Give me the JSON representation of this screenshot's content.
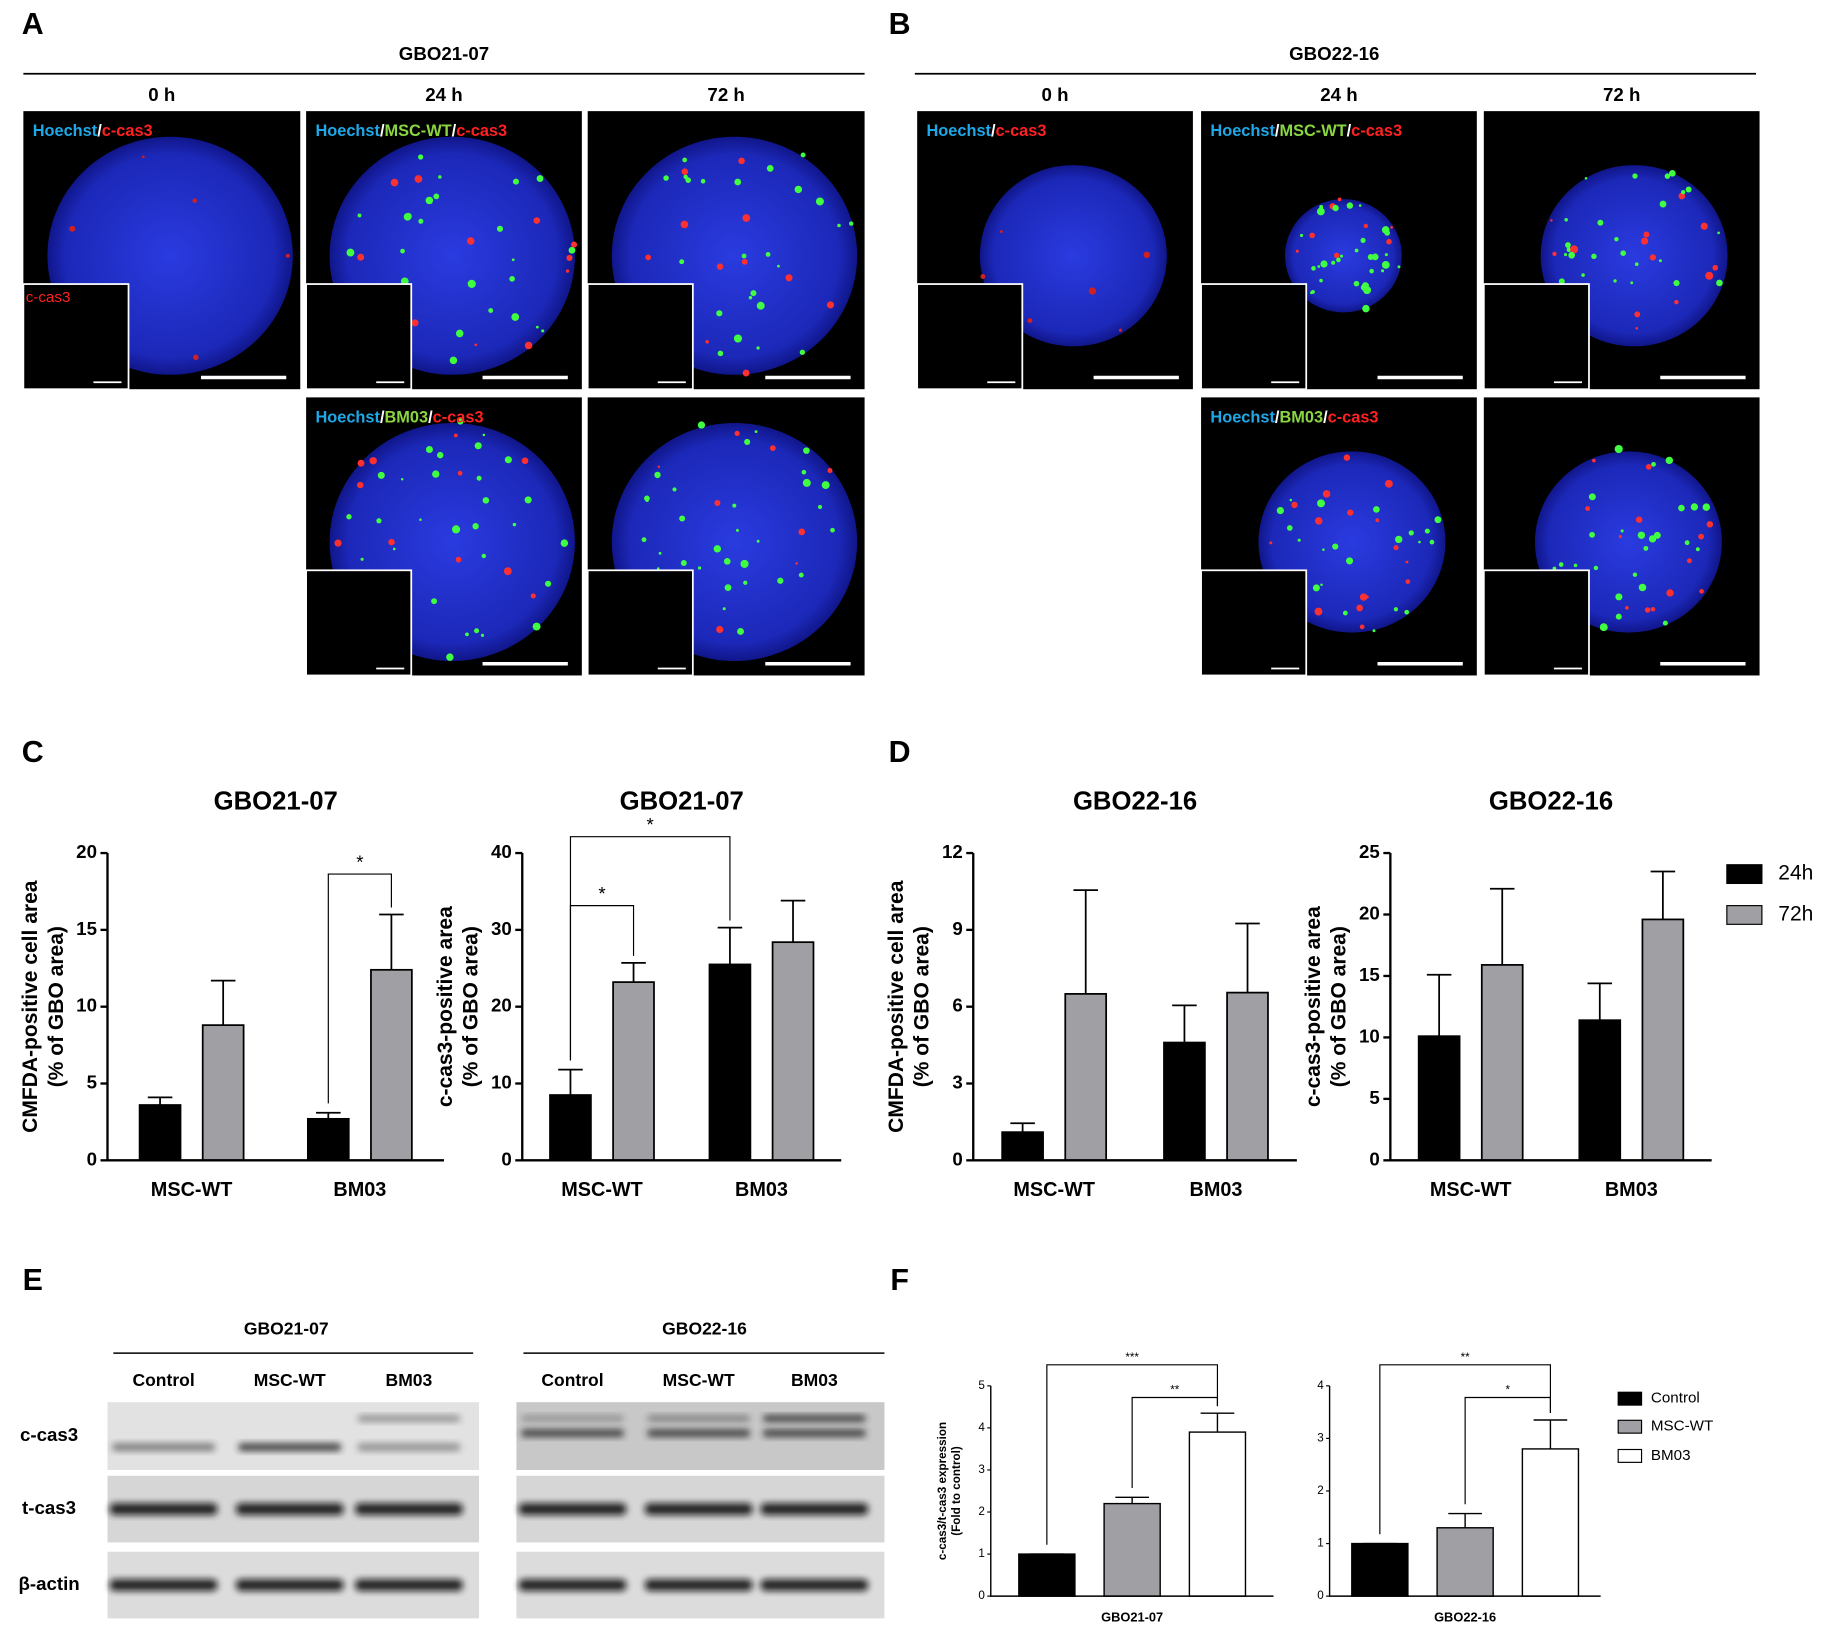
{
  "panel_letters": [
    "A",
    "B",
    "C",
    "D",
    "E",
    "F"
  ],
  "microscopy": [
    {
      "title": "GBO21-07",
      "timepoints": [
        "0 h",
        "24 h",
        "72 h"
      ],
      "labels": [
        [
          "Hoechst",
          "/",
          "c-cas3"
        ],
        [
          "Hoechst",
          "/",
          "MSC-WT",
          "/",
          "c-cas3"
        ],
        [
          "Hoechst",
          "/",
          "BM03",
          "/",
          "c-cas3"
        ]
      ],
      "inset_label": "c-cas3"
    },
    {
      "title": "GBO22-16",
      "timepoints": [
        "0 h",
        "24 h",
        "72 h"
      ],
      "labels": [
        [
          "Hoechst",
          "/",
          "c-cas3"
        ],
        [
          "Hoechst",
          "/",
          "MSC-WT",
          "/",
          "c-cas3"
        ],
        [
          "Hoechst",
          "/",
          "BM03",
          "/",
          "c-cas3"
        ]
      ]
    }
  ],
  "western_blot": {
    "groups": [
      {
        "title": "GBO21-07",
        "lanes": [
          "Control",
          "MSC-WT",
          "BM03"
        ]
      },
      {
        "title": "GBO22-16",
        "lanes": [
          "Control",
          "MSC-WT",
          "BM03"
        ]
      }
    ],
    "rows": [
      "c-cas3",
      "t-cas3",
      "β-actin"
    ]
  },
  "chart_data": [
    {
      "type": "bar",
      "title": "GBO21-07",
      "y_label": [
        "CMFDA-positive cell area",
        "(% of GBO area)"
      ],
      "categories": [
        "MSC-WT",
        "BM03"
      ],
      "series": [
        {
          "color": "#000000",
          "values": [
            3.6,
            2.7
          ],
          "errors": [
            0.5,
            0.4
          ]
        },
        {
          "color": "#a0a0a4",
          "values": [
            8.8,
            12.4
          ],
          "errors": [
            2.9,
            3.6
          ]
        }
      ],
      "ylim": [
        0,
        20
      ],
      "yticks": [
        0,
        5,
        10,
        15,
        20
      ],
      "annotations": [
        "*"
      ]
    },
    {
      "type": "bar",
      "title": "GBO21-07",
      "y_label": [
        "c-cas3-positive area",
        "(% of GBO area)"
      ],
      "categories": [
        "MSC-WT",
        "BM03"
      ],
      "series": [
        {
          "color": "#000000",
          "values": [
            8.5,
            25.5
          ],
          "errors": [
            3.3,
            4.8
          ]
        },
        {
          "color": "#a0a0a4",
          "values": [
            23.2,
            28.4
          ],
          "errors": [
            2.5,
            5.4
          ]
        }
      ],
      "ylim": [
        0,
        40
      ],
      "yticks": [
        0,
        10,
        20,
        30,
        40
      ],
      "annotations": [
        "*",
        "*"
      ]
    },
    {
      "type": "bar",
      "title": "GBO22-16",
      "y_label": [
        "CMFDA-positive cell area",
        "(% of GBO area)"
      ],
      "categories": [
        "MSC-WT",
        "BM03"
      ],
      "series": [
        {
          "color": "#000000",
          "values": [
            1.1,
            4.6
          ],
          "errors": [
            0.35,
            1.45
          ]
        },
        {
          "color": "#a0a0a4",
          "values": [
            6.5,
            6.55
          ],
          "errors": [
            4.05,
            2.7
          ]
        }
      ],
      "ylim": [
        0,
        12
      ],
      "yticks": [
        0,
        3,
        6,
        9,
        12
      ]
    },
    {
      "type": "bar",
      "title": "GBO22-16",
      "y_label": [
        "c-cas3-positive area",
        "(% of GBO area)"
      ],
      "categories": [
        "MSC-WT",
        "BM03"
      ],
      "series": [
        {
          "name": "24h",
          "color": "#000000",
          "values": [
            10.1,
            11.4
          ],
          "errors": [
            5.0,
            3.0
          ]
        },
        {
          "name": "72h",
          "color": "#a0a0a4",
          "values": [
            15.9,
            19.6
          ],
          "errors": [
            6.2,
            3.9
          ]
        }
      ],
      "ylim": [
        0,
        25
      ],
      "yticks": [
        0,
        5,
        10,
        15,
        20,
        25
      ]
    },
    {
      "type": "bar",
      "y_label": [
        "c-cas3/t-cas3 expression",
        "(Fold to control)"
      ],
      "categories": [
        "GBO21-07"
      ],
      "series": [
        {
          "color": "#000000",
          "values": [
            1.0
          ],
          "errors": [
            0
          ]
        },
        {
          "color": "#a0a0a4",
          "values": [
            2.2
          ],
          "errors": [
            0.15
          ]
        },
        {
          "color": "#ffffff",
          "values": [
            3.9
          ],
          "errors": [
            0.45
          ]
        }
      ],
      "ylim": [
        0,
        5
      ],
      "yticks": [
        0,
        1,
        2,
        3,
        4,
        5
      ],
      "annotations": [
        "***",
        "**"
      ]
    },
    {
      "type": "bar",
      "categories": [
        "GBO22-16"
      ],
      "series": [
        {
          "name": "Control",
          "color": "#000000",
          "values": [
            1.0
          ],
          "errors": [
            0
          ]
        },
        {
          "name": "MSC-WT",
          "color": "#a0a0a4",
          "values": [
            1.3
          ],
          "errors": [
            0.27
          ]
        },
        {
          "name": "BM03",
          "color": "#ffffff",
          "values": [
            2.8
          ],
          "errors": [
            0.55
          ]
        }
      ],
      "ylim": [
        0,
        4
      ],
      "yticks": [
        0,
        1,
        2,
        3,
        4
      ],
      "annotations": [
        "**",
        "*"
      ]
    }
  ]
}
